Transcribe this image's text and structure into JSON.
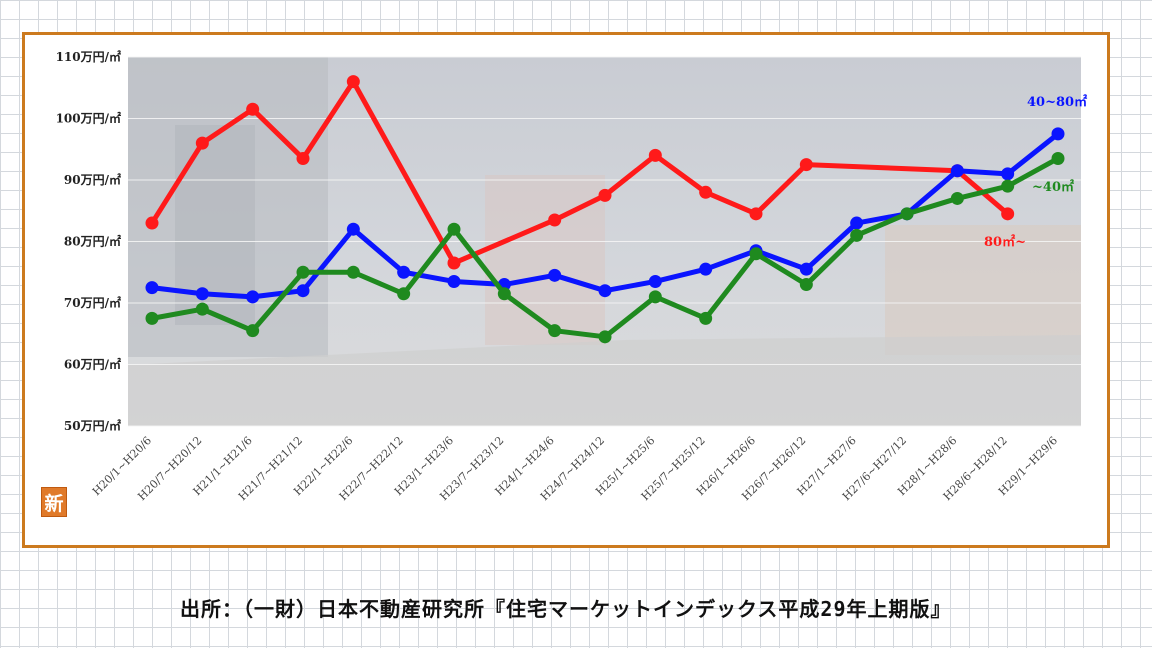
{
  "chart_data": {
    "type": "line",
    "ylim": [
      50,
      110
    ],
    "y_ticks": [
      "50万円/㎡",
      "60万円/㎡",
      "70万円/㎡",
      "80万円/㎡",
      "90万円/㎡",
      "100万円/㎡",
      "110万円/㎡"
    ],
    "y_tick_values": [
      50,
      60,
      70,
      80,
      90,
      100,
      110
    ],
    "categories": [
      "H20/1~H20/6",
      "H20/7~H20/12",
      "H21/1~H21/6",
      "H21/7~H21/12",
      "H22/1~H22/6",
      "H22/7~H22/12",
      "H23/1~H23/6",
      "H23/7~H23/12",
      "H24/1~H24/6",
      "H24/7~H24/12",
      "H25/1~H25/6",
      "H25/7~H25/12",
      "H26/1~H26/6",
      "H26/7~H26/12",
      "H27/1~H27/6",
      "H27/6~H27/12",
      "H28/1~H28/6",
      "H28/6~H28/12",
      "H29/1~H29/6"
    ],
    "grid": true,
    "series": [
      {
        "name": "80㎡~",
        "color": "#ff1a1a",
        "values": [
          83,
          96,
          101.5,
          93.5,
          106,
          null,
          76.5,
          null,
          83.5,
          87.5,
          94,
          88,
          84.5,
          92.5,
          null,
          null,
          91.5,
          84.5,
          null
        ]
      },
      {
        "name": "40~80㎡",
        "color": "#0a14ff",
        "values": [
          72.5,
          71.5,
          71,
          72,
          82,
          75,
          73.5,
          73,
          74.5,
          72,
          73.5,
          75.5,
          78.5,
          75.5,
          83,
          84.5,
          91.5,
          91,
          97.5
        ]
      },
      {
        "name": "~40㎡",
        "color": "#1f8a1f",
        "values": [
          67.5,
          69,
          65.5,
          75,
          75,
          71.5,
          82,
          71.5,
          65.5,
          64.5,
          71,
          67.5,
          78,
          73,
          81,
          84.5,
          87,
          89,
          93.5
        ]
      }
    ]
  },
  "logo_text": "新",
  "source_note": "出所：（一財）日本不動産研究所『住宅マーケットインデックス平成29年上期版』"
}
